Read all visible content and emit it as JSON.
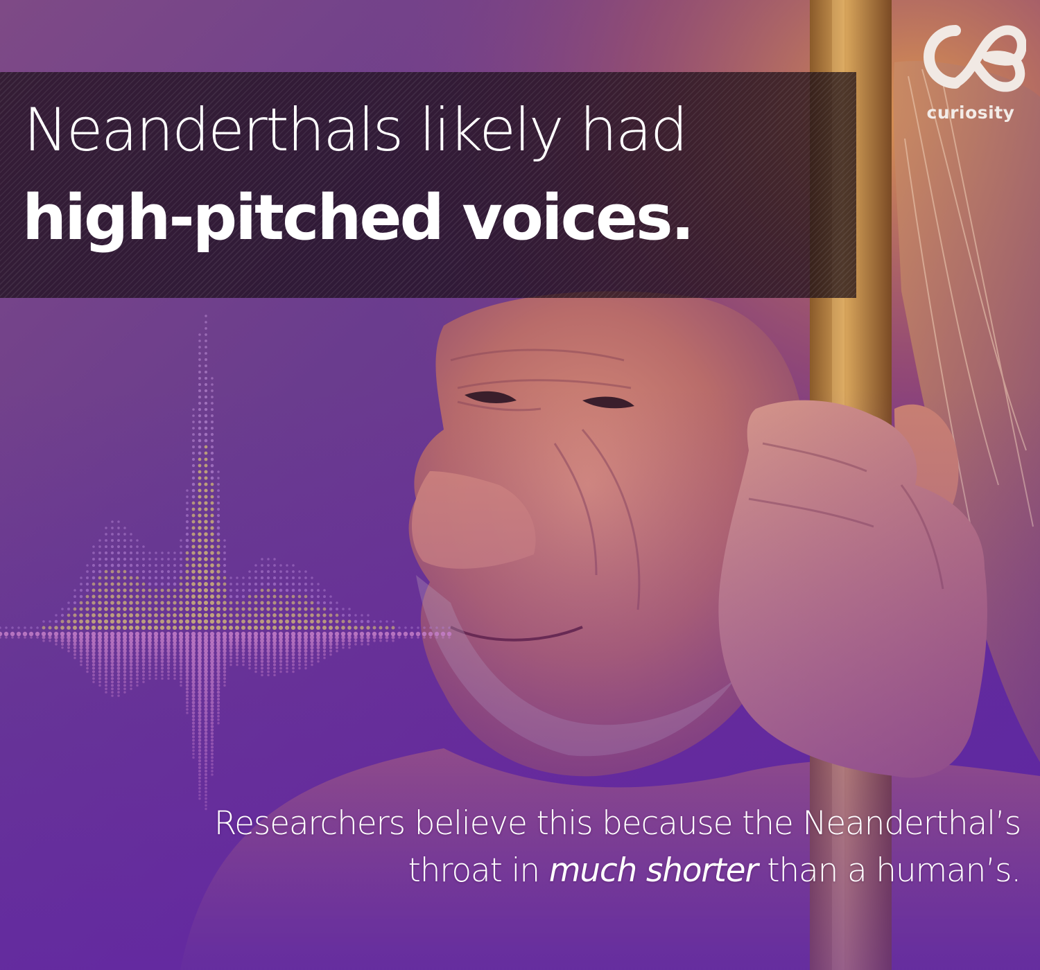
{
  "headline": {
    "line1": "Neanderthals likely had",
    "line2": "high-pitched voices."
  },
  "brand": {
    "name": "curiosity",
    "logo_icon": "curiosity-logo-icon"
  },
  "caption": {
    "part1": "Researchers believe this because the Neanderthal’s",
    "part2": "throat in ",
    "emphasis": "much shorter",
    "part3": " than a human’s."
  },
  "colors": {
    "background_purple": "#5a2c8a",
    "warm_orange": "#c8743a",
    "skin": "#c77e6c",
    "waveform_yellow": "#f4e46a",
    "waveform_pink": "#e39ad0",
    "text": "#ffffff"
  }
}
